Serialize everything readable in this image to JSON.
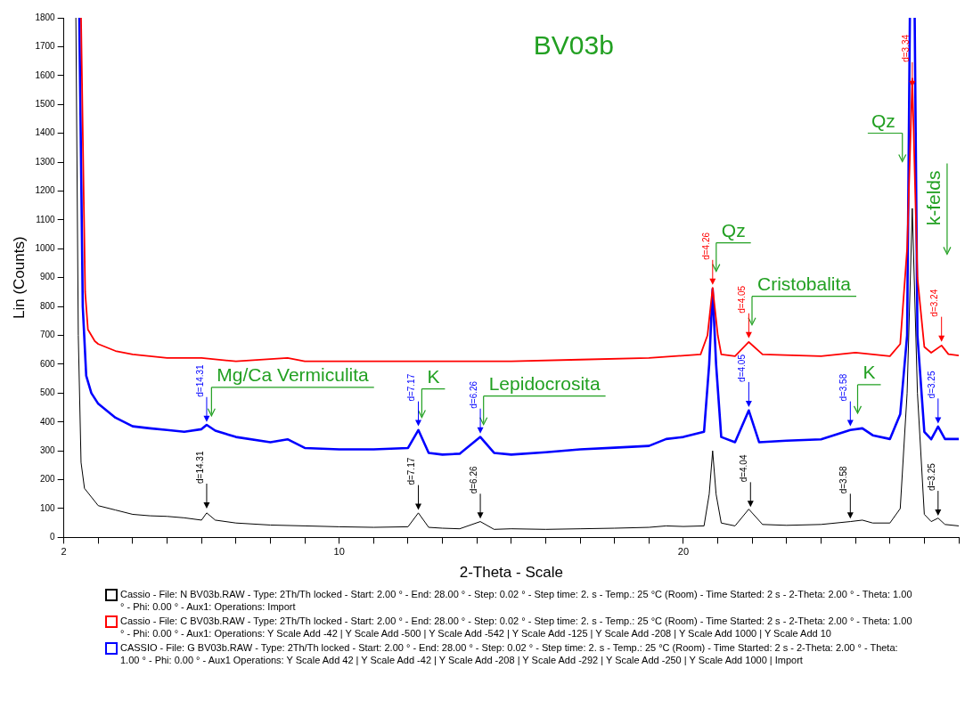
{
  "chart_data": {
    "type": "line",
    "title": "BV03b",
    "xlabel": "2-Theta - Scale",
    "ylabel": "Lin (Counts)",
    "xlim": [
      2,
      28
    ],
    "ylim": [
      0,
      1800
    ],
    "xticks": [
      2,
      {
        "value": 3,
        "label": null
      },
      {
        "value": 4,
        "label": null
      },
      {
        "value": 5,
        "label": null
      },
      {
        "value": 6,
        "label": null
      },
      {
        "value": 7,
        "label": null
      },
      {
        "value": 8,
        "label": null
      },
      {
        "value": 9,
        "label": null
      },
      10,
      {
        "value": 11,
        "label": null
      },
      {
        "value": 12,
        "label": null
      },
      {
        "value": 13,
        "label": null
      },
      {
        "value": 14,
        "label": null
      },
      {
        "value": 15,
        "label": null
      },
      {
        "value": 16,
        "label": null
      },
      {
        "value": 17,
        "label": null
      },
      {
        "value": 18,
        "label": null
      },
      {
        "value": 19,
        "label": null
      },
      20,
      {
        "value": 21,
        "label": null
      },
      {
        "value": 22,
        "label": null
      },
      {
        "value": 23,
        "label": null
      },
      {
        "value": 24,
        "label": null
      },
      {
        "value": 25,
        "label": null
      },
      {
        "value": 26,
        "label": null
      },
      {
        "value": 27,
        "label": null
      },
      {
        "value": 28,
        "label": null
      }
    ],
    "yticks": [
      0,
      100,
      200,
      300,
      400,
      500,
      600,
      700,
      800,
      900,
      1000,
      1100,
      1200,
      1300,
      1400,
      1500,
      1600,
      1700,
      1800
    ],
    "grid": false,
    "legend": "bottom",
    "marker": "none",
    "line_style": "solid",
    "series": [
      {
        "name": "Cassio - File: N BV03b.RAW - Type: 2Th/Th locked - Start: 2.00 ° - End: 28.00 ° - Step: 0.02 ° - Step time: 2. s - Temp.: 25 °C (Room) - Time Started: 2 s - 2-Theta: 2.00 ° - Theta: 1.00 ° - Phi: 0.00 ° - Aux1: Operations: Import",
        "color": "#000000",
        "x": [
          2.35,
          2.42,
          2.5,
          2.6,
          2.8,
          3,
          3.5,
          4,
          4.5,
          5,
          5.5,
          6,
          6.15,
          6.4,
          7,
          8,
          9,
          10,
          11,
          12,
          12.3,
          12.6,
          13,
          13.5,
          14.1,
          14.5,
          15,
          16,
          17,
          18,
          19,
          19.5,
          20,
          20.6,
          20.75,
          20.85,
          20.95,
          21.1,
          21.5,
          21.9,
          22.3,
          23,
          24,
          24.85,
          25.2,
          25.5,
          26,
          26.3,
          26.5,
          26.65,
          26.8,
          27,
          27.2,
          27.4,
          27.6,
          28
        ],
        "values": [
          1800,
          700,
          260,
          170,
          140,
          110,
          95,
          80,
          75,
          73,
          68,
          60,
          85,
          60,
          50,
          43,
          40,
          37,
          35,
          37,
          85,
          35,
          32,
          30,
          55,
          28,
          30,
          28,
          30,
          32,
          35,
          40,
          38,
          40,
          150,
          300,
          150,
          50,
          40,
          98,
          45,
          42,
          45,
          55,
          60,
          50,
          50,
          100,
          500,
          1140,
          500,
          80,
          55,
          67,
          45,
          40
        ]
      },
      {
        "name": "Cassio - File: C BV03b.RAW - Type: 2Th/Th locked - Start: 2.00 ° - End: 28.00 ° - Step: 0.02 ° - Step time: 2. s - Temp.: 25 °C (Room) - Time Started: 2 s - 2-Theta: 2.00 ° - Theta: 1.00 ° - Phi: 0.00 ° - Aux1: Operations: Y Scale Add -42 | Y Scale Add -500 | Y Scale Add -542 | Y Scale Add -125 | Y Scale Add -208 | Y Scale Add 1000 | Y Scale Add 10",
        "color": "#ff0000",
        "x": [
          2.5,
          2.62,
          2.7,
          2.9,
          3,
          3.5,
          4,
          5,
          6,
          7,
          8.5,
          9,
          10,
          12,
          14,
          15,
          17,
          19,
          20.5,
          20.7,
          20.85,
          21,
          21.1,
          21.5,
          21.9,
          22.3,
          24,
          25,
          26,
          26.3,
          26.5,
          26.65,
          26.8,
          27,
          27.2,
          27.5,
          27.7,
          28
        ],
        "values": [
          1800,
          850,
          720,
          680,
          670,
          646,
          634,
          622,
          622,
          610,
          622,
          610,
          610,
          610,
          610,
          610,
          616,
          622,
          634,
          700,
          865,
          700,
          634,
          628,
          677,
          634,
          628,
          640,
          628,
          670,
          1000,
          1590,
          900,
          660,
          640,
          665,
          635,
          630
        ]
      },
      {
        "name": "CASSIO - File: G BV03b.RAW - Type: 2Th/Th locked - Start: 2.00 ° - End: 28.00 ° - Step: 0.02 ° - Step time: 2. s - Temp.: 25 °C (Room) - Time Started: 2 s - 2-Theta: 2.00 ° - Theta: 1.00 ° - Phi: 0.00 ° - Aux1 Operations: Y Scale Add 42 | Y Scale Add -42 | Y Scale Add -208 | Y Scale Add -292 | Y Scale Add -250 | Y Scale Add 1000 | Import",
        "color": "#0000ff",
        "x": [
          2.45,
          2.55,
          2.65,
          2.8,
          3,
          3.5,
          4,
          4.5,
          5,
          5.5,
          6,
          6.15,
          6.4,
          7,
          8,
          8.5,
          9,
          10,
          11,
          12,
          12.3,
          12.6,
          13,
          13.5,
          14.1,
          14.5,
          15,
          16,
          17,
          18,
          19,
          19.5,
          20,
          20.6,
          20.75,
          20.85,
          20.95,
          21.1,
          21.5,
          21.9,
          22.2,
          23,
          24,
          24.85,
          25.2,
          25.5,
          26,
          26.3,
          26.5,
          26.58,
          26.65,
          26.72,
          26.8,
          27,
          27.2,
          27.4,
          27.6,
          28
        ],
        "values": [
          1800,
          800,
          560,
          500,
          463,
          415,
          385,
          378,
          372,
          366,
          375,
          390,
          370,
          348,
          330,
          340,
          310,
          305,
          305,
          310,
          372,
          293,
          287,
          290,
          348,
          293,
          287,
          295,
          305,
          311,
          317,
          341,
          348,
          366,
          600,
          860,
          600,
          348,
          330,
          440,
          330,
          335,
          340,
          372,
          378,
          354,
          341,
          427,
          700,
          1800,
          null,
          1800,
          700,
          366,
          340,
          384,
          341,
          341
        ]
      }
    ],
    "annotations": [
      {
        "text": "d=14.31",
        "x": 6.15,
        "y": 100
      },
      {
        "text": "d=7.17",
        "x": 12.3,
        "y": 95
      },
      {
        "text": "d=6.26",
        "x": 14.1,
        "y": 65
      },
      {
        "text": "d=4.04",
        "x": 21.95,
        "y": 105
      },
      {
        "text": "d=3.58",
        "x": 24.85,
        "y": 65
      },
      {
        "text": "d=3.25",
        "x": 27.4,
        "y": 75
      },
      {
        "text": "d=14.31",
        "x": 6.15,
        "y": 400
      },
      {
        "text": "d=7.17",
        "x": 12.3,
        "y": 385
      },
      {
        "text": "d=6.26",
        "x": 14.1,
        "y": 360
      },
      {
        "text": "d=4.05",
        "x": 21.9,
        "y": 452
      },
      {
        "text": "d=3.58",
        "x": 24.85,
        "y": 385
      },
      {
        "text": "d=3.25",
        "x": 27.4,
        "y": 395
      },
      {
        "text": "d=4.26",
        "x": 20.85,
        "y": 875
      },
      {
        "text": "d=4.05",
        "x": 21.9,
        "y": 690
      },
      {
        "text": "d=3.34",
        "x": 26.65,
        "y": 1560
      },
      {
        "text": "d=3.24",
        "x": 27.5,
        "y": 678
      },
      "Mg/Ca Vermiculita",
      "K",
      "Lepidocrosita",
      "Qz",
      "Cristobalita",
      "K",
      "Qz",
      "k-felds"
    ]
  }
}
